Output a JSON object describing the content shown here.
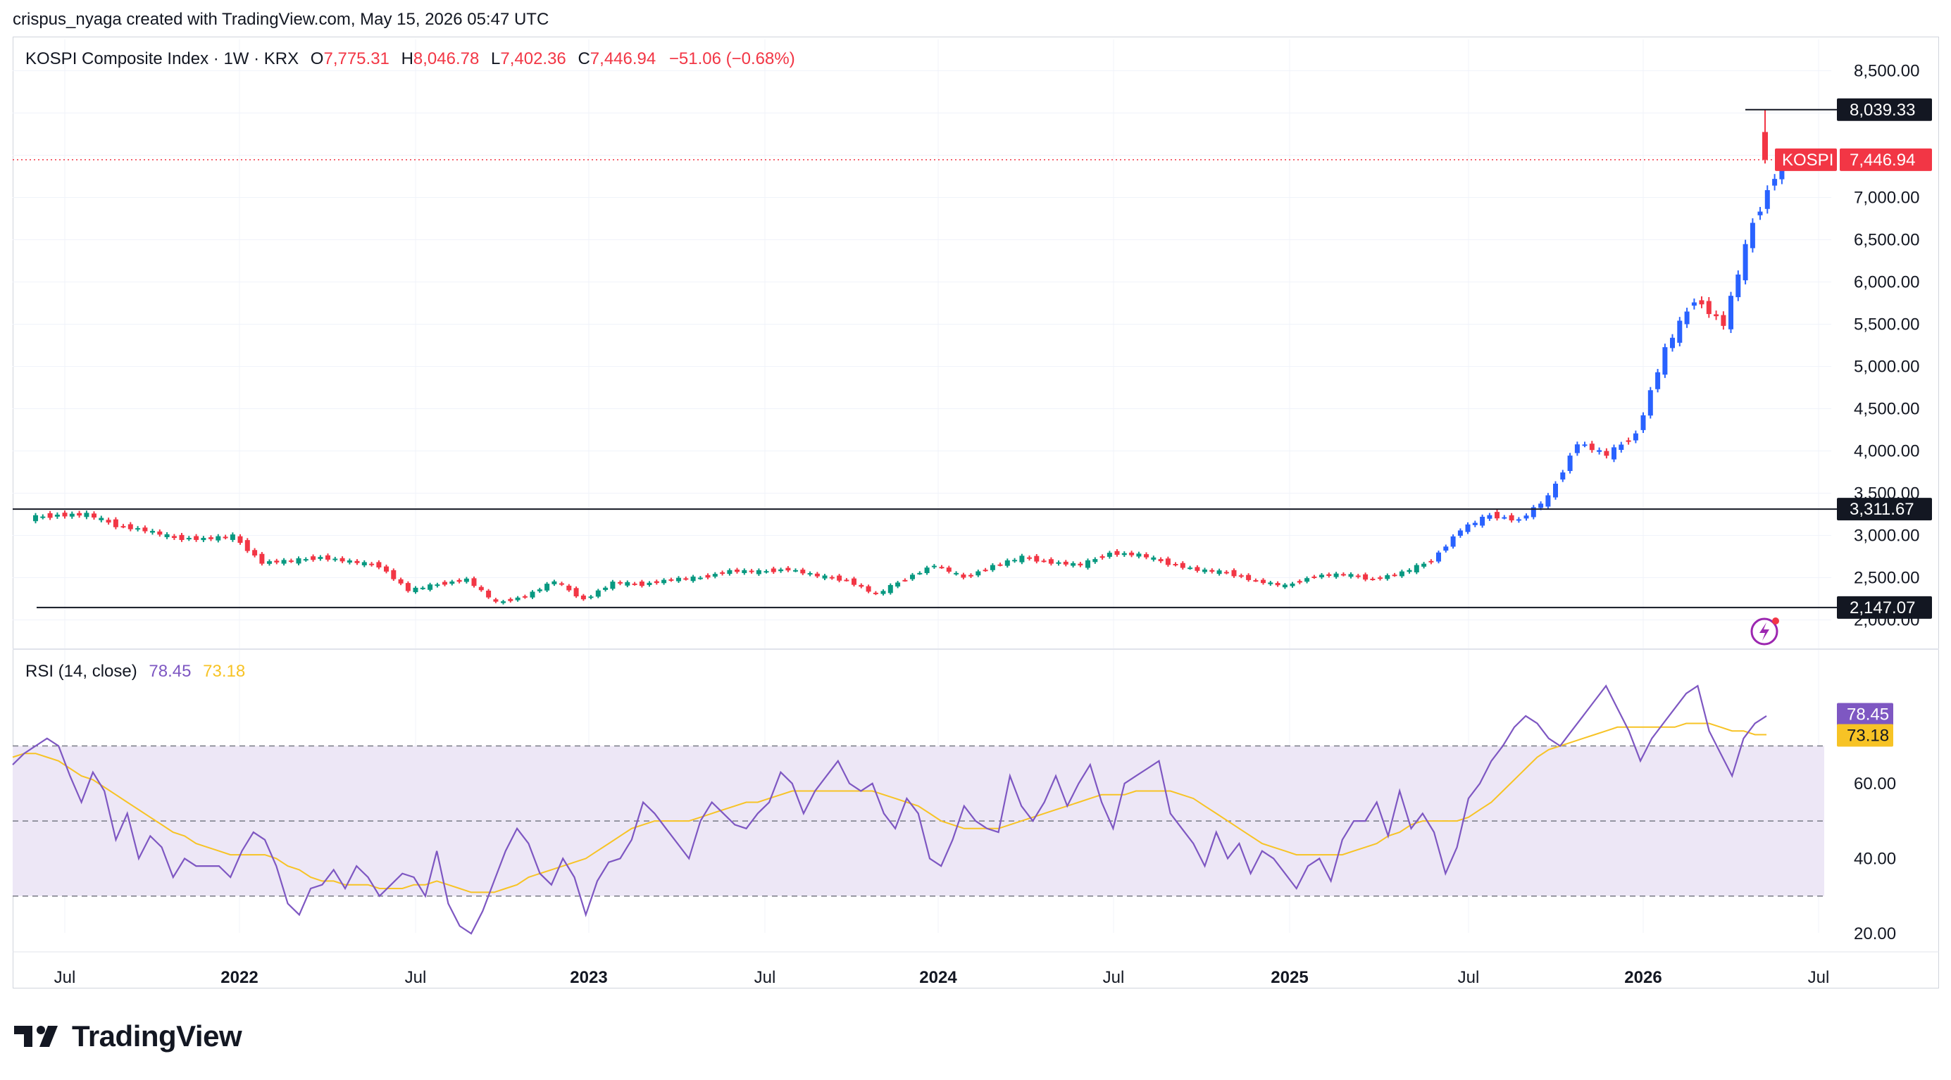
{
  "attribution": "crispus_nyaga created with TradingView.com, May 15, 2026 05:47 UTC",
  "legend": {
    "name": "KOSPI Composite Index · 1W · KRX",
    "o_label": "O",
    "o": "7,775.31",
    "h_label": "H",
    "h": "8,046.78",
    "l_label": "L",
    "l": "7,402.36",
    "c_label": "C",
    "c": "7,446.94",
    "change": "−51.06 (−0.68%)"
  },
  "rsi_legend": {
    "label": "RSI (14, close)",
    "rsi": "78.45",
    "ma": "73.18"
  },
  "brand": "TradingView",
  "colors": {
    "up": "#089981",
    "up_recent": "#2962ff",
    "down": "#f23645",
    "rsi": "#7e57c2",
    "rsi_ma": "#f7c325",
    "band": "#ede7f6"
  },
  "chart_data": [
    {
      "type": "candlestick",
      "title": "KOSPI Composite Index · 1W · KRX",
      "y_ticks": [
        "2,000.00",
        "2,500.00",
        "3,000.00",
        "3,500.00",
        "4,000.00",
        "4,500.00",
        "5,000.00",
        "5,500.00",
        "6,000.00",
        "6,500.00",
        "7,000.00",
        "8,500.00"
      ],
      "x_ticks": [
        "Jul",
        "2022",
        "Jul",
        "2023",
        "Jul",
        "2024",
        "Jul",
        "2025",
        "Jul",
        "2026",
        "Jul"
      ],
      "ylim": [
        2000,
        8500
      ],
      "horizontal_levels": [
        {
          "value": 3311.67,
          "label": "3,311.67"
        },
        {
          "value": 2147.07,
          "label": "2,147.07"
        },
        {
          "value": 8039.33,
          "label": "8,039.33"
        }
      ],
      "last_price": {
        "symbol": "KOSPI",
        "value": 7446.94,
        "label": "7,446.94"
      },
      "series": [
        {
          "date": "2021-06",
          "close": 3240
        },
        {
          "date": "2021-07",
          "close": 3250
        },
        {
          "date": "2021-08",
          "close": 3120
        },
        {
          "date": "2021-09",
          "close": 3060
        },
        {
          "date": "2021-10",
          "close": 2970
        },
        {
          "date": "2021-11",
          "close": 2960
        },
        {
          "date": "2021-12",
          "close": 2990
        },
        {
          "date": "2022-01",
          "close": 2680
        },
        {
          "date": "2022-02",
          "close": 2700
        },
        {
          "date": "2022-03",
          "close": 2740
        },
        {
          "date": "2022-04",
          "close": 2690
        },
        {
          "date": "2022-05",
          "close": 2640
        },
        {
          "date": "2022-06",
          "close": 2350
        },
        {
          "date": "2022-07",
          "close": 2420
        },
        {
          "date": "2022-08",
          "close": 2480
        },
        {
          "date": "2022-09",
          "close": 2200
        },
        {
          "date": "2022-10",
          "close": 2280
        },
        {
          "date": "2022-11",
          "close": 2460
        },
        {
          "date": "2022-12",
          "close": 2240
        },
        {
          "date": "2023-01",
          "close": 2440
        },
        {
          "date": "2023-02",
          "close": 2420
        },
        {
          "date": "2023-03",
          "close": 2480
        },
        {
          "date": "2023-04",
          "close": 2500
        },
        {
          "date": "2023-05",
          "close": 2580
        },
        {
          "date": "2023-06",
          "close": 2570
        },
        {
          "date": "2023-07",
          "close": 2600
        },
        {
          "date": "2023-08",
          "close": 2520
        },
        {
          "date": "2023-09",
          "close": 2470
        },
        {
          "date": "2023-10",
          "close": 2300
        },
        {
          "date": "2023-11",
          "close": 2490
        },
        {
          "date": "2023-12",
          "close": 2650
        },
        {
          "date": "2024-01",
          "close": 2500
        },
        {
          "date": "2024-02",
          "close": 2640
        },
        {
          "date": "2024-03",
          "close": 2740
        },
        {
          "date": "2024-04",
          "close": 2680
        },
        {
          "date": "2024-05",
          "close": 2650
        },
        {
          "date": "2024-06",
          "close": 2790
        },
        {
          "date": "2024-07",
          "close": 2770
        },
        {
          "date": "2024-08",
          "close": 2670
        },
        {
          "date": "2024-09",
          "close": 2590
        },
        {
          "date": "2024-10",
          "close": 2560
        },
        {
          "date": "2024-11",
          "close": 2460
        },
        {
          "date": "2024-12",
          "close": 2400
        },
        {
          "date": "2025-01",
          "close": 2520
        },
        {
          "date": "2025-02",
          "close": 2540
        },
        {
          "date": "2025-03",
          "close": 2480
        },
        {
          "date": "2025-04",
          "close": 2560
        },
        {
          "date": "2025-05",
          "close": 2700
        },
        {
          "date": "2025-06",
          "close": 3070
        },
        {
          "date": "2025-07",
          "close": 3240
        },
        {
          "date": "2025-08",
          "close": 3180
        },
        {
          "date": "2025-09",
          "close": 3450
        },
        {
          "date": "2025-10",
          "close": 4100
        },
        {
          "date": "2025-11",
          "close": 3950
        },
        {
          "date": "2025-12",
          "close": 4200
        },
        {
          "date": "2026-01",
          "close": 5200
        },
        {
          "date": "2026-02",
          "close": 5800
        },
        {
          "date": "2026-03",
          "close": 5500
        },
        {
          "date": "2026-04",
          "close": 6700
        },
        {
          "date": "2026-05",
          "close": 7446.94
        }
      ]
    },
    {
      "type": "line",
      "title": "RSI (14, close)",
      "y_ticks": [
        "20.00",
        "40.00",
        "60.00"
      ],
      "ylim": [
        15,
        95
      ],
      "overbought": 70,
      "middle": 50,
      "oversold": 30,
      "last_values": {
        "rsi": 78.45,
        "ma": 73.18
      },
      "series": [
        {
          "name": "RSI",
          "values": [
            65,
            68,
            70,
            72,
            70,
            62,
            55,
            63,
            58,
            45,
            52,
            40,
            46,
            43,
            35,
            40,
            38,
            38,
            38,
            35,
            42,
            47,
            45,
            38,
            28,
            25,
            32,
            33,
            37,
            32,
            38,
            35,
            30,
            33,
            36,
            35,
            30,
            42,
            28,
            22,
            20,
            26,
            34,
            42,
            48,
            44,
            36,
            33,
            40,
            35,
            25,
            34,
            39,
            40,
            45,
            55,
            52,
            48,
            44,
            40,
            50,
            55,
            52,
            49,
            48,
            52,
            55,
            63,
            60,
            52,
            58,
            62,
            66,
            60,
            58,
            60,
            52,
            48,
            56,
            52,
            40,
            38,
            45,
            54,
            50,
            48,
            47,
            62,
            54,
            50,
            55,
            62,
            54,
            60,
            65,
            55,
            48,
            60,
            62,
            64,
            66,
            52,
            48,
            44,
            38,
            47,
            40,
            44,
            36,
            42,
            40,
            36,
            32,
            38,
            40,
            34,
            45,
            50,
            50,
            55,
            46,
            58,
            48,
            52,
            47,
            36,
            43,
            56,
            60,
            66,
            70,
            75,
            78,
            76,
            72,
            70,
            74,
            78,
            82,
            86,
            80,
            74,
            66,
            72,
            76,
            80,
            84,
            86,
            74,
            68,
            62,
            72,
            76,
            78
          ]
        },
        {
          "name": "RSI-based MA",
          "values": [
            67,
            68,
            68,
            67,
            66,
            64,
            62,
            61,
            59,
            57,
            55,
            53,
            51,
            49,
            47,
            46,
            44,
            43,
            42,
            41,
            41,
            41,
            41,
            40,
            38,
            37,
            35,
            34,
            34,
            33,
            33,
            33,
            32,
            32,
            32,
            33,
            33,
            34,
            33,
            32,
            31,
            31,
            31,
            32,
            33,
            35,
            36,
            37,
            38,
            39,
            40,
            42,
            44,
            46,
            48,
            49,
            50,
            50,
            50,
            50,
            51,
            52,
            53,
            54,
            55,
            55,
            56,
            57,
            58,
            58,
            58,
            58,
            58,
            58,
            58,
            58,
            57,
            56,
            55,
            54,
            52,
            50,
            49,
            48,
            48,
            48,
            48,
            49,
            50,
            51,
            52,
            53,
            54,
            55,
            56,
            57,
            57,
            57,
            58,
            58,
            58,
            58,
            57,
            56,
            54,
            52,
            50,
            48,
            46,
            44,
            43,
            42,
            41,
            41,
            41,
            41,
            41,
            42,
            43,
            44,
            46,
            47,
            49,
            50,
            50,
            50,
            50,
            51,
            53,
            55,
            58,
            61,
            64,
            67,
            69,
            70,
            71,
            72,
            73,
            74,
            75,
            75,
            75,
            75,
            75,
            75,
            76,
            76,
            76,
            75,
            74,
            74,
            73,
            73
          ]
        }
      ]
    }
  ]
}
